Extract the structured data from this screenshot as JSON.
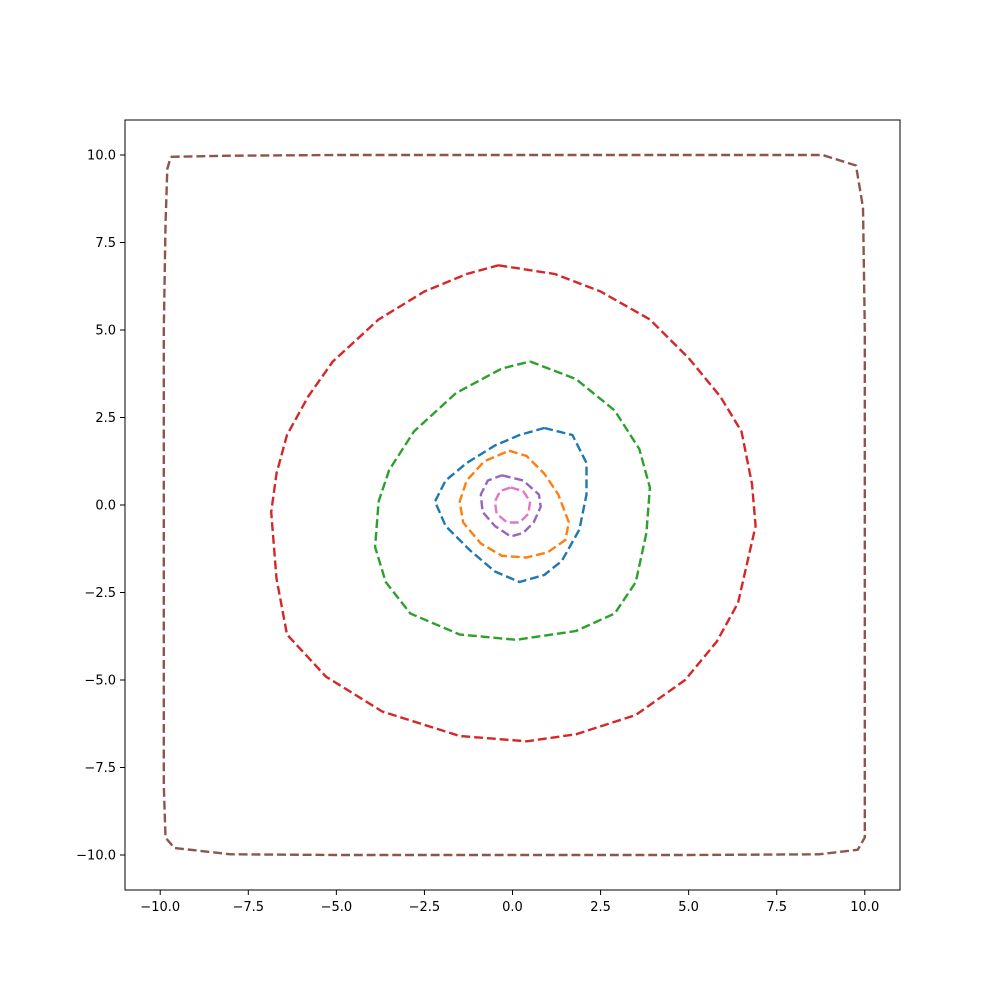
{
  "chart_data": {
    "type": "line",
    "title": "",
    "xlabel": "",
    "ylabel": "",
    "xlim": [
      -11,
      11
    ],
    "ylim": [
      -11,
      11
    ],
    "grid": false,
    "legend": "none",
    "x_ticks": [
      -10.0,
      -7.5,
      -5.0,
      -2.5,
      0.0,
      2.5,
      5.0,
      7.5,
      10.0
    ],
    "x_tick_labels": [
      "−10.0",
      "−7.5",
      "−5.0",
      "−2.5",
      "0.0",
      "2.5",
      "5.0",
      "7.5",
      "10.0"
    ],
    "y_ticks": [
      10.0,
      7.5,
      5.0,
      2.5,
      0.0,
      -2.5,
      -5.0,
      -7.5,
      -10.0
    ],
    "y_tick_labels": [
      "10.0",
      "7.5",
      "5.0",
      "2.5",
      "0.0",
      "−2.5",
      "−5.0",
      "−7.5",
      "−10.0"
    ],
    "series": [
      {
        "color": "#1f77b4",
        "line_style": "dashed",
        "points": [
          [
            0.9,
            2.2
          ],
          [
            1.7,
            2.0
          ],
          [
            2.1,
            1.2
          ],
          [
            2.1,
            0.3
          ],
          [
            1.9,
            -0.7
          ],
          [
            1.4,
            -1.6
          ],
          [
            0.9,
            -2.0
          ],
          [
            0.2,
            -2.2
          ],
          [
            -0.5,
            -1.9
          ],
          [
            -1.2,
            -1.3
          ],
          [
            -1.9,
            -0.6
          ],
          [
            -2.2,
            0.1
          ],
          [
            -1.9,
            0.7
          ],
          [
            -1.3,
            1.2
          ],
          [
            -0.5,
            1.7
          ],
          [
            0.2,
            2.0
          ],
          [
            0.9,
            2.2
          ]
        ]
      },
      {
        "color": "#ff7f0e",
        "line_style": "dashed",
        "points": [
          [
            -0.1,
            1.55
          ],
          [
            0.4,
            1.4
          ],
          [
            0.9,
            0.9
          ],
          [
            1.3,
            0.3
          ],
          [
            1.6,
            -0.5
          ],
          [
            1.5,
            -1.0
          ],
          [
            1.0,
            -1.35
          ],
          [
            0.4,
            -1.5
          ],
          [
            -0.3,
            -1.45
          ],
          [
            -0.9,
            -1.1
          ],
          [
            -1.4,
            -0.5
          ],
          [
            -1.5,
            0.1
          ],
          [
            -1.3,
            0.7
          ],
          [
            -0.8,
            1.25
          ],
          [
            -0.1,
            1.55
          ]
        ]
      },
      {
        "color": "#2ca02c",
        "line_style": "dashed",
        "points": [
          [
            0.5,
            4.1
          ],
          [
            1.8,
            3.6
          ],
          [
            2.9,
            2.7
          ],
          [
            3.6,
            1.6
          ],
          [
            3.9,
            0.5
          ],
          [
            3.8,
            -0.8
          ],
          [
            3.5,
            -2.2
          ],
          [
            2.9,
            -3.1
          ],
          [
            1.8,
            -3.6
          ],
          [
            0.1,
            -3.85
          ],
          [
            -1.5,
            -3.7
          ],
          [
            -2.9,
            -3.1
          ],
          [
            -3.6,
            -2.2
          ],
          [
            -3.9,
            -1.2
          ],
          [
            -3.8,
            0.1
          ],
          [
            -3.5,
            1.0
          ],
          [
            -2.8,
            2.1
          ],
          [
            -1.6,
            3.2
          ],
          [
            -0.3,
            3.9
          ],
          [
            0.5,
            4.1
          ]
        ]
      },
      {
        "color": "#d62728",
        "line_style": "dashed",
        "points": [
          [
            -0.4,
            6.85
          ],
          [
            1.2,
            6.6
          ],
          [
            2.5,
            6.1
          ],
          [
            3.9,
            5.3
          ],
          [
            5.0,
            4.2
          ],
          [
            5.9,
            3.1
          ],
          [
            6.5,
            2.1
          ],
          [
            6.8,
            0.6
          ],
          [
            6.9,
            -0.6
          ],
          [
            6.4,
            -2.8
          ],
          [
            5.8,
            -3.9
          ],
          [
            4.9,
            -5.0
          ],
          [
            3.5,
            -6.0
          ],
          [
            1.8,
            -6.55
          ],
          [
            0.4,
            -6.75
          ],
          [
            -1.5,
            -6.6
          ],
          [
            -3.7,
            -5.9
          ],
          [
            -5.3,
            -4.9
          ],
          [
            -6.4,
            -3.7
          ],
          [
            -6.7,
            -2.1
          ],
          [
            -6.85,
            -0.2
          ],
          [
            -6.7,
            0.9
          ],
          [
            -6.4,
            2.0
          ],
          [
            -5.8,
            3.1
          ],
          [
            -5.1,
            4.1
          ],
          [
            -3.8,
            5.3
          ],
          [
            -2.5,
            6.1
          ],
          [
            -1.3,
            6.6
          ],
          [
            -0.4,
            6.85
          ]
        ]
      },
      {
        "color": "#9467bd",
        "line_style": "dashed",
        "points": [
          [
            -0.3,
            0.85
          ],
          [
            0.3,
            0.7
          ],
          [
            0.75,
            0.3
          ],
          [
            0.8,
            -0.05
          ],
          [
            0.6,
            -0.5
          ],
          [
            0.3,
            -0.8
          ],
          [
            -0.05,
            -0.9
          ],
          [
            -0.5,
            -0.6
          ],
          [
            -0.85,
            -0.2
          ],
          [
            -0.9,
            0.3
          ],
          [
            -0.7,
            0.7
          ],
          [
            -0.3,
            0.85
          ]
        ]
      },
      {
        "color": "#8c564b",
        "line_style": "dashed",
        "points": [
          [
            -9.7,
            9.95
          ],
          [
            -8.0,
            9.98
          ],
          [
            -5.0,
            10.0
          ],
          [
            0.0,
            10.0
          ],
          [
            5.0,
            10.0
          ],
          [
            8.8,
            10.0
          ],
          [
            9.75,
            9.7
          ],
          [
            9.95,
            8.5
          ],
          [
            10.0,
            5.0
          ],
          [
            10.0,
            0.0
          ],
          [
            10.0,
            -5.0
          ],
          [
            10.0,
            -9.5
          ],
          [
            9.8,
            -9.85
          ],
          [
            8.7,
            -9.98
          ],
          [
            5.0,
            -10.0
          ],
          [
            0.0,
            -10.0
          ],
          [
            -5.0,
            -10.0
          ],
          [
            -8.0,
            -9.98
          ],
          [
            -9.6,
            -9.8
          ],
          [
            -9.85,
            -9.5
          ],
          [
            -9.9,
            -8.0
          ],
          [
            -9.9,
            -5.0
          ],
          [
            -9.9,
            0.0
          ],
          [
            -9.9,
            5.0
          ],
          [
            -9.85,
            8.0
          ],
          [
            -9.8,
            9.6
          ],
          [
            -9.7,
            9.95
          ]
        ]
      },
      {
        "color": "#e377c2",
        "line_style": "dashed",
        "points": [
          [
            -0.05,
            0.5
          ],
          [
            0.3,
            0.4
          ],
          [
            0.5,
            0.1
          ],
          [
            0.45,
            -0.25
          ],
          [
            0.2,
            -0.5
          ],
          [
            -0.15,
            -0.5
          ],
          [
            -0.45,
            -0.25
          ],
          [
            -0.5,
            0.1
          ],
          [
            -0.35,
            0.4
          ],
          [
            -0.05,
            0.5
          ]
        ]
      }
    ]
  }
}
